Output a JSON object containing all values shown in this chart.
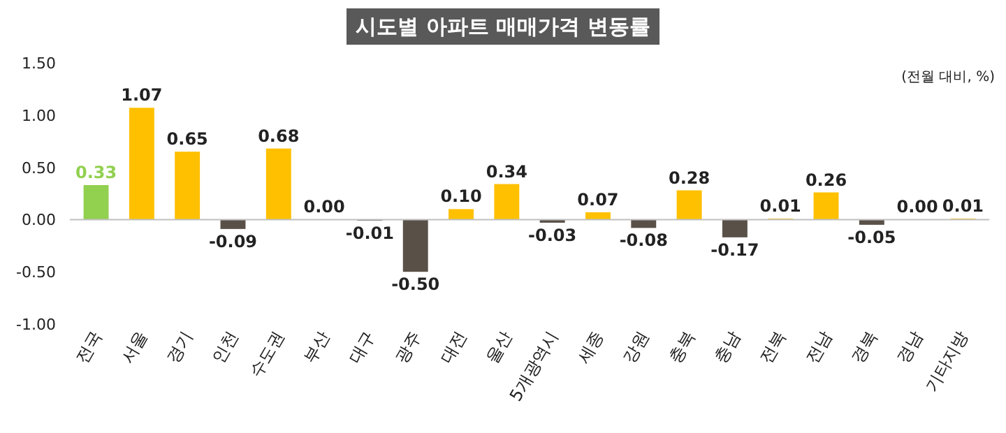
{
  "chart_data": {
    "type": "bar",
    "title": "시도별 아파트 매매가격 변동률",
    "subtitle": "(전월 대비, %)",
    "categories": [
      "전국",
      "서울",
      "경기",
      "인천",
      "수도권",
      "부산",
      "대구",
      "광주",
      "대전",
      "울산",
      "5개광역시",
      "세종",
      "강원",
      "충북",
      "충남",
      "전북",
      "전남",
      "경북",
      "경남",
      "기타지방"
    ],
    "values": [
      0.33,
      1.07,
      0.65,
      -0.09,
      0.68,
      0.0,
      -0.01,
      -0.5,
      0.1,
      0.34,
      -0.03,
      0.07,
      -0.08,
      0.28,
      -0.17,
      0.01,
      0.26,
      -0.05,
      0.0,
      0.01
    ],
    "colors": [
      "#92d050",
      "#ffc000",
      "#ffc000",
      "#595048",
      "#ffc000",
      "#ffc000",
      "#595048",
      "#595048",
      "#ffc000",
      "#ffc000",
      "#595048",
      "#ffc000",
      "#595048",
      "#ffc000",
      "#595048",
      "#ffc000",
      "#ffc000",
      "#595048",
      "#ffc000",
      "#ffc000"
    ],
    "ylim": [
      -1.0,
      1.5
    ],
    "yticks": [
      {
        "value": -1,
        "label": "-1.00"
      },
      {
        "value": -0.5,
        "label": "-0.50"
      },
      {
        "value": 0,
        "label": "0.00"
      },
      {
        "value": 0.5,
        "label": "0.50"
      },
      {
        "value": 1,
        "label": "1.00"
      },
      {
        "value": 1.5,
        "label": "1.50"
      }
    ],
    "value_labels": [
      "0.33",
      "1.07",
      "0.65",
      "-0.09",
      "0.68",
      "0.00",
      "-0.01",
      "-0.50",
      "0.10",
      "0.34",
      "-0.03",
      "0.07",
      "-0.08",
      "0.28",
      "-0.17",
      "0.01",
      "0.26",
      "-0.05",
      "0.00",
      "0.01"
    ]
  }
}
